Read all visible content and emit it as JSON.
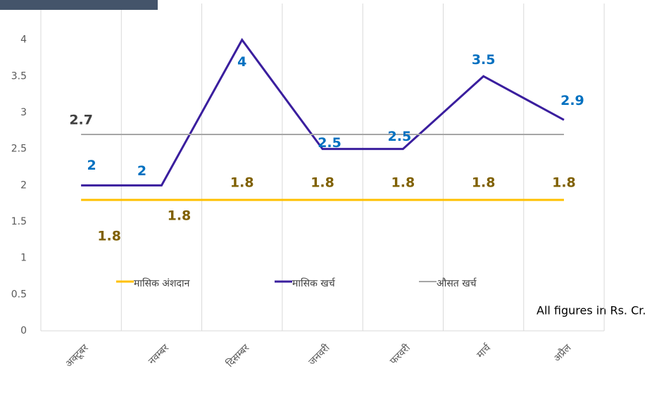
{
  "chart_data": {
    "type": "line",
    "categories": [
      "अक्टूबर",
      "नवम्बर",
      "दिसम्बर",
      "जनवरी",
      "फरवरी",
      "मार्च",
      "अप्रैल"
    ],
    "series": [
      {
        "name": "मासिक अंशदान",
        "color": "#FFC000",
        "label_color": "#7F6000",
        "values": [
          1.8,
          1.8,
          1.8,
          1.8,
          1.8,
          1.8,
          1.8
        ]
      },
      {
        "name": "मासिक खर्च",
        "color": "#3A1E9E",
        "label_color": "#0070C0",
        "values": [
          2,
          2,
          4,
          2.5,
          2.5,
          3.5,
          2.9
        ]
      },
      {
        "name": "औसत खर्च",
        "color": "#A6A6A6",
        "label_color": "#404040",
        "values": [
          2.7,
          2.7,
          2.7,
          2.7,
          2.7,
          2.7,
          2.7
        ],
        "value_labels": [
          "2.7",
          null,
          null,
          null,
          null,
          null,
          null
        ]
      }
    ],
    "ylim": [
      0,
      4.5
    ],
    "yticks": [
      0,
      0.5,
      1,
      1.5,
      2,
      2.5,
      3,
      3.5,
      4,
      4.5
    ],
    "grid": "x",
    "annotation": "All figures in Rs. Cr."
  }
}
